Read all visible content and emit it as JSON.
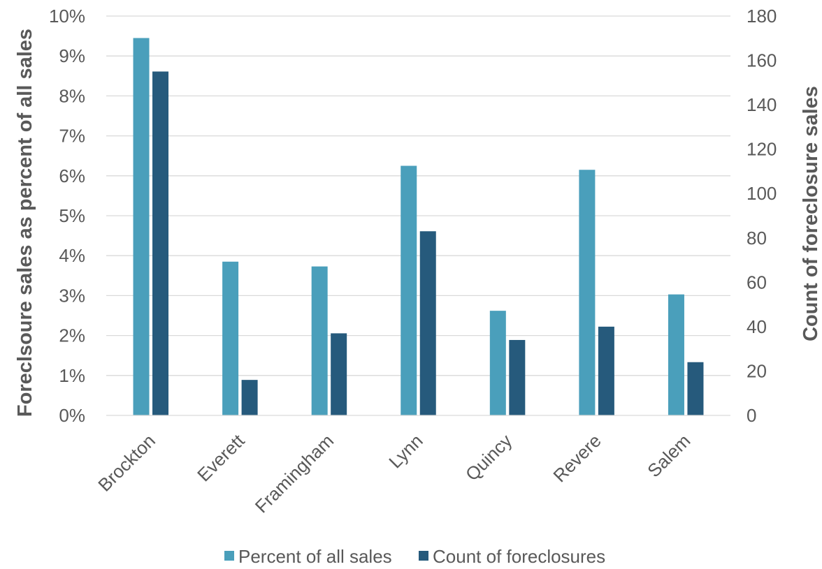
{
  "chart_data": {
    "type": "bar",
    "categories": [
      "Brockton",
      "Everett",
      "Framingham",
      "Lynn",
      "Quincy",
      "Revere",
      "Salem"
    ],
    "series": [
      {
        "name": "Percent of all sales",
        "axis": "left",
        "color": "#4a9fbb",
        "values": [
          9.45,
          3.85,
          3.73,
          6.25,
          2.62,
          6.15,
          3.03
        ]
      },
      {
        "name": "Count of foreclosures",
        "axis": "right",
        "color": "#265a7c",
        "values": [
          155,
          16,
          37,
          83,
          34,
          40,
          24
        ]
      }
    ],
    "ylabel_left": "Foreclsoure sales as percent of all sales",
    "ylabel_right": "Count of foreclosure sales",
    "ylim_left": [
      0,
      10
    ],
    "ylim_right": [
      0,
      180
    ],
    "yticks_left": [
      "0%",
      "1%",
      "2%",
      "3%",
      "4%",
      "5%",
      "6%",
      "7%",
      "8%",
      "9%",
      "10%"
    ],
    "yticks_right": [
      "0",
      "20",
      "40",
      "60",
      "80",
      "100",
      "120",
      "140",
      "160",
      "180"
    ],
    "grid": true,
    "legend_position": "bottom",
    "gridline_color": "#d9d9d9"
  }
}
